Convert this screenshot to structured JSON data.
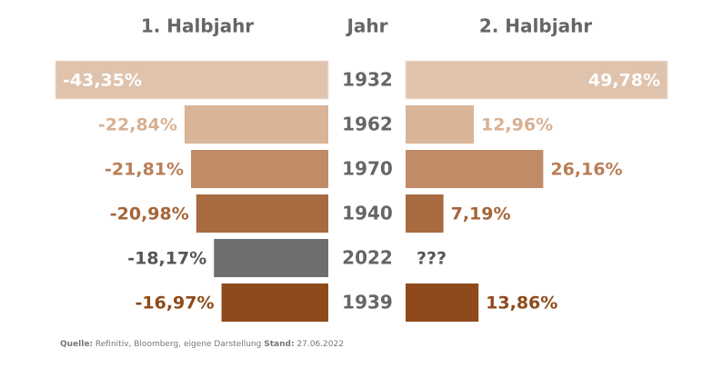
{
  "chart_data": {
    "type": "butterfly",
    "category_label": "Jahr",
    "categories": [
      "1932",
      "1962",
      "1970",
      "1940",
      "2022",
      "1939"
    ],
    "colors": [
      "#dfc3ad",
      "#d9b497",
      "#c08b66",
      "#a86a40",
      "#6e6e6e",
      "#8e4a1a"
    ],
    "label_colors": [
      "#ffffff",
      "#d9b092",
      "#b97e57",
      "#a4653a",
      "#555555",
      "#8e4a1a"
    ],
    "series": [
      {
        "name": "1. Halbjahr",
        "values": [
          -43.35,
          -22.84,
          -21.81,
          -20.98,
          -18.17,
          -16.97
        ],
        "value_labels": [
          "-43,35%",
          "-22,84%",
          "-21,81%",
          "-20,98%",
          "-18,17%",
          "-16,97%"
        ]
      },
      {
        "name": "2. Halbjahr",
        "values": [
          49.78,
          12.96,
          26.16,
          7.19,
          null,
          13.86
        ],
        "value_labels": [
          "49,78%",
          "12,96%",
          "26,16%",
          "7,19%",
          "???",
          "13,86%"
        ]
      }
    ],
    "source": {
      "label": "Quelle:",
      "text": "Refinitiv, Bloomberg, eigene Darstellung",
      "date_label": "Stand:",
      "date": "27.06.2022"
    }
  }
}
